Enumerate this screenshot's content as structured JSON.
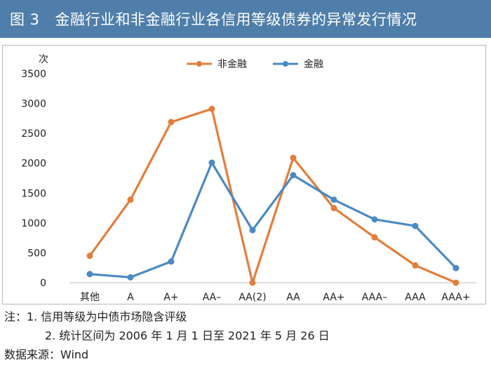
{
  "header": {
    "figure_label": "图 3",
    "title": "金融行业和非金融行业各信用等级债券的异常发行情况"
  },
  "colors": {
    "header_bg": "#4f7eaa",
    "non_financial": "#e27e3c",
    "financial": "#4b8ac3"
  },
  "chart_data": {
    "type": "line",
    "ylabel": "次",
    "ylim": [
      0,
      3500
    ],
    "yticks": [
      0,
      500,
      1000,
      1500,
      2000,
      2500,
      3000,
      3500
    ],
    "grid": false,
    "legend_position": "top",
    "categories": [
      "其他",
      "A",
      "A+",
      "AA–",
      "AA(2)",
      "AA",
      "AA+",
      "AAA–",
      "AAA",
      "AAA+"
    ],
    "series": [
      {
        "name": "非金融",
        "color": "#e27e3c",
        "values": [
          450,
          1390,
          2690,
          2910,
          0,
          2090,
          1250,
          760,
          290,
          0
        ]
      },
      {
        "name": "金融",
        "color": "#4b8ac3",
        "values": [
          145,
          90,
          355,
          2010,
          880,
          1800,
          1390,
          1060,
          950,
          245
        ]
      }
    ]
  },
  "notes": {
    "line1": "注：1. 信用等级为中债市场隐含评级",
    "line2": "2. 统计区间为 2006 年 1 月 1 日至 2021 年 5 月 26 日",
    "source": "数据来源：Wind"
  }
}
